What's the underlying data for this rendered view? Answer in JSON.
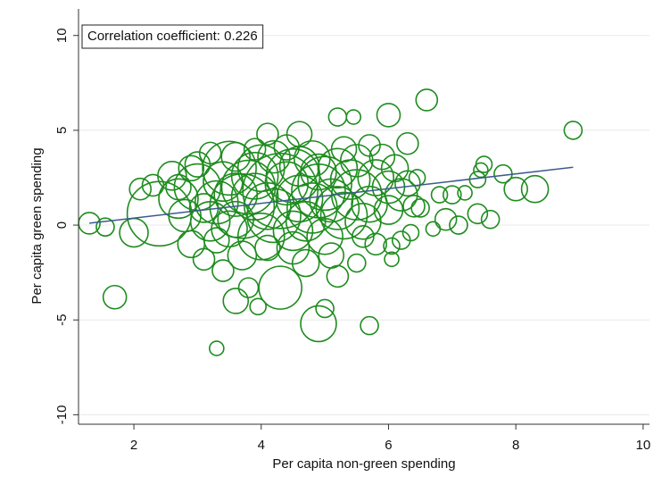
{
  "chart_data": {
    "type": "scatter",
    "annotation": "Correlation coefficient: 0.226",
    "x_label": "Per capita non-green spending",
    "y_label": "Per capita green spending",
    "xlim": [
      1.13,
      10.1
    ],
    "ylim": [
      -10.5,
      11.4
    ],
    "xticks": [
      2,
      4,
      6,
      8,
      10
    ],
    "yticks": [
      -10,
      -5,
      0,
      5,
      10
    ],
    "grid": true,
    "series": [
      {
        "color": "#1e8c1e",
        "x": [
          1.3,
          1.55,
          1.7,
          3.3,
          8.9,
          8.3,
          8.0,
          7.8,
          7.5,
          7.45,
          7.4,
          7.6,
          7.4,
          7.1,
          6.9,
          7.2,
          7.0,
          6.8,
          6.6,
          6.0,
          5.2,
          5.45,
          4.9,
          5.0,
          5.7,
          6.05,
          6.05,
          3.6,
          3.8,
          3.95,
          2.0,
          2.1,
          2.4,
          2.7,
          2.9,
          3.4,
          4.3,
          4.7,
          5.2,
          5.5,
          6.35,
          6.5,
          6.45,
          6.3,
          5.7,
          4.6,
          4.1,
          3.2,
          2.6,
          2.3,
          2.9,
          6.7,
          6.2,
          3.1,
          3.7,
          4.5,
          5.1,
          5.8,
          3.5,
          3.0,
          4.0,
          4.5,
          5.0,
          5.5,
          4.2,
          3.7,
          4.8,
          5.3,
          4.0,
          3.2,
          5.8,
          6.1,
          6.2,
          5.5,
          4.3,
          3.8,
          3.3,
          3.5,
          4.5,
          5.0,
          5.6,
          6.0,
          6.0,
          5.2,
          4.8,
          4.2,
          3.6,
          3.0,
          2.8,
          3.9,
          4.6,
          5.1,
          5.7,
          4.4,
          3.4,
          4.9,
          5.4,
          4.1,
          4.7,
          3.6,
          3.1,
          6.3,
          5.9,
          5.3,
          4.4,
          3.9,
          2.7,
          6.4,
          5.6,
          4.1,
          3.3,
          4.9,
          3.9,
          4.6,
          5.2,
          3.6
        ],
        "values": [
          0.1,
          -0.1,
          -3.8,
          -6.5,
          5.0,
          1.9,
          1.9,
          2.7,
          3.2,
          2.9,
          2.4,
          0.3,
          0.6,
          0.0,
          0.3,
          1.7,
          1.6,
          1.6,
          6.6,
          5.8,
          5.7,
          5.7,
          -5.2,
          -4.4,
          -5.3,
          -1.8,
          -1.1,
          -4.0,
          -3.3,
          -4.3,
          -0.4,
          1.9,
          0.6,
          1.4,
          -1.0,
          -2.4,
          -3.3,
          -2.0,
          -2.7,
          -2.0,
          -0.4,
          0.9,
          2.5,
          4.3,
          4.2,
          4.8,
          4.8,
          3.8,
          2.6,
          2.1,
          3.0,
          -0.2,
          -0.8,
          -1.8,
          -1.6,
          -1.2,
          -1.6,
          -1.0,
          3.0,
          2.0,
          3.0,
          2.6,
          2.2,
          1.6,
          0.5,
          1.0,
          0.9,
          0.5,
          -0.6,
          0.2,
          2.5,
          3.0,
          1.6,
          3.4,
          1.8,
          2.0,
          1.2,
          -0.2,
          -0.3,
          -0.6,
          0.2,
          0.8,
          2.0,
          3.0,
          3.5,
          3.6,
          3.6,
          3.2,
          0.5,
          1.5,
          1.4,
          1.3,
          1.1,
          2.2,
          2.3,
          2.8,
          2.4,
          1.0,
          0.2,
          0.3,
          0.9,
          2.2,
          3.6,
          4.0,
          4.1,
          4.0,
          2.0,
          1.0,
          -0.6,
          -1.2,
          -0.8,
          1.8,
          2.6,
          3.1,
          0.9,
          1.6
        ],
        "sizes": [
          12,
          10,
          13,
          8,
          10,
          15,
          13,
          10,
          9,
          8,
          9,
          10,
          11,
          10,
          12,
          8,
          10,
          9,
          12,
          13,
          10,
          8,
          20,
          10,
          10,
          8,
          9,
          14,
          11,
          9,
          16,
          12,
          36,
          22,
          15,
          12,
          24,
          15,
          12,
          10,
          9,
          10,
          9,
          12,
          12,
          14,
          12,
          12,
          16,
          12,
          14,
          8,
          10,
          12,
          16,
          18,
          14,
          12,
          30,
          26,
          26,
          30,
          30,
          28,
          30,
          36,
          28,
          26,
          26,
          22,
          20,
          15,
          18,
          18,
          42,
          30,
          24,
          20,
          22,
          20,
          20,
          16,
          18,
          22,
          20,
          18,
          16,
          14,
          18,
          26,
          26,
          24,
          20,
          24,
          22,
          20,
          22,
          26,
          22,
          20,
          16,
          14,
          14,
          14,
          14,
          12,
          14,
          12,
          12,
          14,
          14,
          30,
          26,
          22,
          24,
          24
        ]
      }
    ],
    "fit": {
      "color": "#3b5a8c",
      "x": [
        1.3,
        8.9
      ],
      "values": [
        0.1,
        3.05
      ]
    }
  }
}
